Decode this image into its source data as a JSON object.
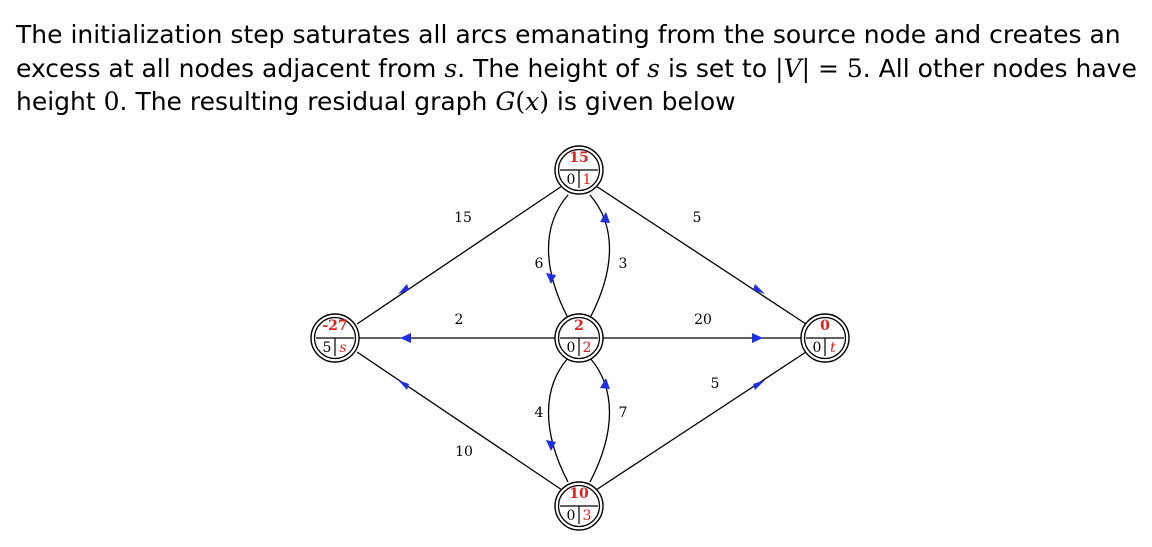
{
  "paragraph": {
    "s1": "The initialization step saturates all arcs emanating from the source node and creates an excess at all nodes adjacent from ",
    "v_s": "s",
    "s2": ". The height of ",
    "v_s2": "s",
    "s3": " is set to ",
    "v_V": "|V|",
    "s4": " = 5",
    "s5": ". All other nodes have height ",
    "zero": "0",
    "s6": ". The resulting residual graph ",
    "v_G": "G",
    "paren_open": "(",
    "v_x": "x",
    "paren_close": ")",
    "s7": " is given below"
  },
  "graph": {
    "nodes": {
      "s": {
        "excess": "-27",
        "height": "5",
        "label": "s"
      },
      "a": {
        "excess": "15",
        "height": "0",
        "label": "1"
      },
      "b": {
        "excess": "2",
        "height": "0",
        "label": "2"
      },
      "c": {
        "excess": "10",
        "height": "0",
        "label": "3"
      },
      "t": {
        "excess": "0",
        "height": "0",
        "label": "t"
      }
    },
    "edges": {
      "a_s": "15",
      "a_t": "5",
      "a_b": "6",
      "b_a": "3",
      "b_s": "2",
      "b_t": "20",
      "b_c": "4",
      "c_b": "7",
      "c_s": "10",
      "c_t": "5"
    },
    "colors": {
      "arrow": "#1f2fe0",
      "excess": "#e21b1b"
    }
  }
}
